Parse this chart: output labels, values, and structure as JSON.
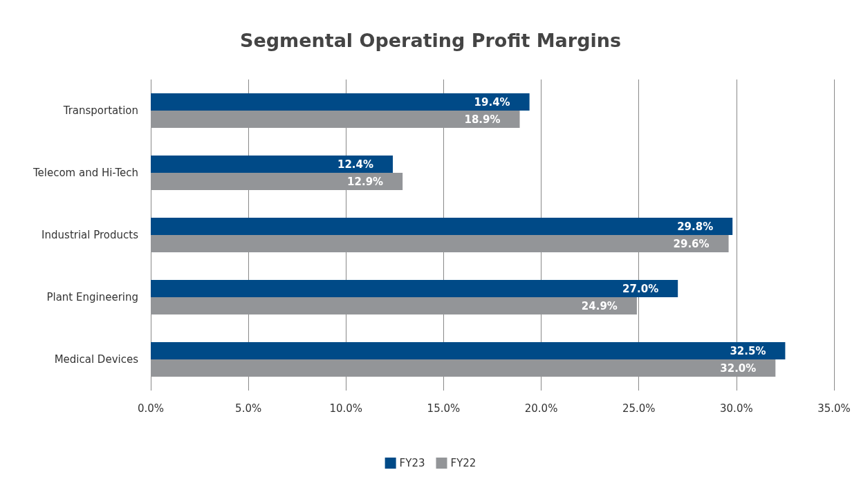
{
  "chart_data": {
    "type": "bar",
    "orientation": "horizontal",
    "title": "Segmental Operating Profit Margins",
    "categories": [
      "Transportation",
      "Telecom and Hi-Tech",
      "Industrial Products",
      "Plant Engineering",
      "Medical Devices"
    ],
    "series": [
      {
        "name": "FY23",
        "color": "#004a87",
        "values": [
          19.4,
          12.4,
          29.8,
          27.0,
          32.5
        ],
        "value_labels": [
          "19.4%",
          "12.4%",
          "29.8%",
          "27.0%",
          "32.5%"
        ]
      },
      {
        "name": "FY22",
        "color": "#939598",
        "values": [
          18.9,
          12.9,
          29.6,
          24.9,
          32.0
        ],
        "value_labels": [
          "18.9%",
          "12.9%",
          "29.6%",
          "24.9%",
          "32.0%"
        ]
      }
    ],
    "xlim": [
      0,
      35
    ],
    "xticks": [
      {
        "value": 0,
        "label": "0.0%"
      },
      {
        "value": 5,
        "label": "5.0%"
      },
      {
        "value": 10,
        "label": "10.0%"
      },
      {
        "value": 15,
        "label": "15.0%"
      },
      {
        "value": 20,
        "label": "20.0%"
      },
      {
        "value": 25,
        "label": "25.0%"
      },
      {
        "value": 30,
        "label": "30.0%"
      },
      {
        "value": 35,
        "label": "35.0%"
      }
    ],
    "grid": "x",
    "legend": "bottom"
  }
}
